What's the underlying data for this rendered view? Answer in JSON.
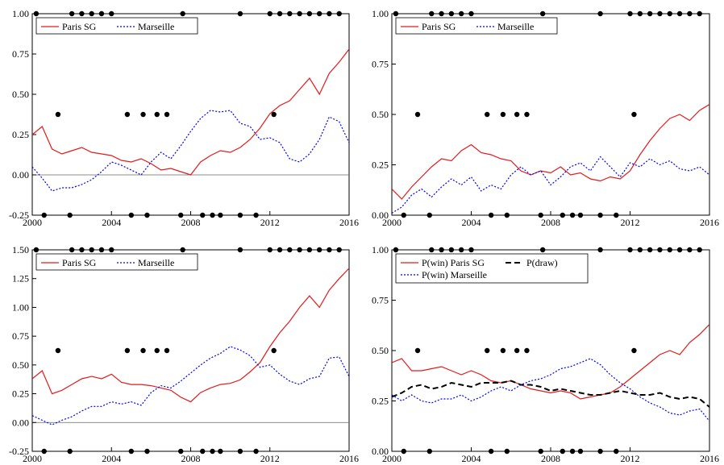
{
  "chart_data": [
    {
      "type": "line",
      "title": "",
      "xlabel": "",
      "ylabel": "",
      "xlim": [
        2000,
        2016
      ],
      "ylim": [
        -0.25,
        1.0
      ],
      "x_ticks": [
        "2000",
        "2004",
        "2008",
        "2012",
        "2016"
      ],
      "y_ticks": [
        "-0.25",
        "0.00",
        "0.25",
        "0.50",
        "0.75",
        "1.00"
      ],
      "reference_line": 0,
      "legend_position": "top-left",
      "series": [
        {
          "name": "Paris SG",
          "color": "#e41a1c",
          "style": "solid",
          "x": [
            2000,
            2000.5,
            2001,
            2001.5,
            2002,
            2002.5,
            2003,
            2003.5,
            2004,
            2004.5,
            2005,
            2005.5,
            2006,
            2006.5,
            2007,
            2007.5,
            2008,
            2008.5,
            2009,
            2009.5,
            2010,
            2010.5,
            2011,
            2011.5,
            2012,
            2012.5,
            2013,
            2013.5,
            2014,
            2014.5,
            2015,
            2015.5,
            2016
          ],
          "y": [
            0.25,
            0.3,
            0.16,
            0.13,
            0.15,
            0.17,
            0.14,
            0.13,
            0.12,
            0.09,
            0.08,
            0.1,
            0.07,
            0.03,
            0.04,
            0.02,
            0.0,
            0.08,
            0.12,
            0.15,
            0.14,
            0.17,
            0.22,
            0.29,
            0.38,
            0.43,
            0.46,
            0.53,
            0.6,
            0.5,
            0.63,
            0.7,
            0.78
          ]
        },
        {
          "name": "Marseille",
          "color": "#0000ff",
          "style": "dotted",
          "x": [
            2000,
            2000.5,
            2001,
            2001.5,
            2002,
            2002.5,
            2003,
            2003.5,
            2004,
            2004.5,
            2005,
            2005.5,
            2006,
            2006.5,
            2007,
            2007.5,
            2008,
            2008.5,
            2009,
            2009.5,
            2010,
            2010.5,
            2011,
            2011.5,
            2012,
            2012.5,
            2013,
            2013.5,
            2014,
            2014.5,
            2015,
            2015.5,
            2016
          ],
          "y": [
            0.05,
            -0.02,
            -0.1,
            -0.08,
            -0.08,
            -0.06,
            -0.03,
            0.02,
            0.08,
            0.06,
            0.03,
            0.0,
            0.08,
            0.14,
            0.1,
            0.18,
            0.27,
            0.35,
            0.4,
            0.39,
            0.4,
            0.32,
            0.3,
            0.22,
            0.23,
            0.2,
            0.1,
            0.08,
            0.13,
            0.22,
            0.36,
            0.33,
            0.2
          ]
        }
      ],
      "result_dots": {
        "top": [
          2000.2,
          2002,
          2002.5,
          2003,
          2003.5,
          2004,
          2007.6,
          2010.5,
          2012,
          2012.5,
          2013,
          2013.5,
          2014,
          2014.5,
          2015,
          2015.5
        ],
        "middle": [
          2001.3,
          2004.8,
          2005.6,
          2006.3,
          2006.8,
          2012.2
        ],
        "bottom": [
          2000.6,
          2001.9,
          2005,
          2005.8,
          2007.5,
          2008.6,
          2009.1,
          2009.5,
          2010.5,
          2011.3
        ]
      }
    },
    {
      "type": "line",
      "title": "",
      "xlabel": "",
      "ylabel": "",
      "xlim": [
        2000,
        2016
      ],
      "ylim": [
        0.0,
        1.0
      ],
      "x_ticks": [
        "2000",
        "2004",
        "2008",
        "2012",
        "2016"
      ],
      "y_ticks": [
        "0.00",
        "0.25",
        "0.50",
        "0.75",
        "1.00"
      ],
      "legend_position": "top-left",
      "series": [
        {
          "name": "Paris SG",
          "color": "#e41a1c",
          "style": "solid",
          "x": [
            2000,
            2000.5,
            2001,
            2001.5,
            2002,
            2002.5,
            2003,
            2003.5,
            2004,
            2004.5,
            2005,
            2005.5,
            2006,
            2006.5,
            2007,
            2007.5,
            2008,
            2008.5,
            2009,
            2009.5,
            2010,
            2010.5,
            2011,
            2011.5,
            2012,
            2012.5,
            2013,
            2013.5,
            2014,
            2014.5,
            2015,
            2015.5,
            2016
          ],
          "y": [
            0.13,
            0.08,
            0.14,
            0.19,
            0.24,
            0.28,
            0.27,
            0.32,
            0.35,
            0.31,
            0.3,
            0.28,
            0.27,
            0.22,
            0.2,
            0.22,
            0.21,
            0.24,
            0.2,
            0.21,
            0.18,
            0.17,
            0.19,
            0.18,
            0.22,
            0.3,
            0.37,
            0.43,
            0.48,
            0.5,
            0.47,
            0.52,
            0.55
          ]
        },
        {
          "name": "Marseille",
          "color": "#0000ff",
          "style": "dotted",
          "x": [
            2000,
            2000.5,
            2001,
            2001.5,
            2002,
            2002.5,
            2003,
            2003.5,
            2004,
            2004.5,
            2005,
            2005.5,
            2006,
            2006.5,
            2007,
            2007.5,
            2008,
            2008.5,
            2009,
            2009.5,
            2010,
            2010.5,
            2011,
            2011.5,
            2012,
            2012.5,
            2013,
            2013.5,
            2014,
            2014.5,
            2015,
            2015.5,
            2016
          ],
          "y": [
            0.01,
            0.04,
            0.1,
            0.13,
            0.09,
            0.14,
            0.18,
            0.15,
            0.19,
            0.12,
            0.15,
            0.13,
            0.2,
            0.24,
            0.2,
            0.22,
            0.15,
            0.19,
            0.24,
            0.26,
            0.22,
            0.29,
            0.24,
            0.19,
            0.26,
            0.24,
            0.28,
            0.25,
            0.27,
            0.23,
            0.22,
            0.24,
            0.2
          ]
        }
      ],
      "result_dots": {
        "top": [
          2000.2,
          2002,
          2002.5,
          2003,
          2003.5,
          2004,
          2007.6,
          2010.5,
          2012,
          2012.5,
          2013,
          2013.5,
          2014,
          2014.5,
          2015,
          2015.5
        ],
        "middle": [
          2001.3,
          2004.8,
          2005.6,
          2006.3,
          2006.8,
          2012.2
        ],
        "bottom": [
          2000.6,
          2001.9,
          2005,
          2005.8,
          2007.5,
          2008.6,
          2009.1,
          2009.5,
          2010.5,
          2011.3
        ]
      }
    },
    {
      "type": "line",
      "title": "",
      "xlabel": "",
      "ylabel": "",
      "xlim": [
        2000,
        2016
      ],
      "ylim": [
        -0.25,
        1.5
      ],
      "x_ticks": [
        "2000",
        "2004",
        "2008",
        "2012",
        "2016"
      ],
      "y_ticks": [
        "-0.25",
        "0.00",
        "0.25",
        "0.50",
        "0.75",
        "1.00",
        "1.25",
        "1.50"
      ],
      "reference_line": 0,
      "legend_position": "top-left",
      "series": [
        {
          "name": "Paris SG",
          "color": "#e41a1c",
          "style": "solid",
          "x": [
            2000,
            2000.5,
            2001,
            2001.5,
            2002,
            2002.5,
            2003,
            2003.5,
            2004,
            2004.5,
            2005,
            2005.5,
            2006,
            2006.5,
            2007,
            2007.5,
            2008,
            2008.5,
            2009,
            2009.5,
            2010,
            2010.5,
            2011,
            2011.5,
            2012,
            2012.5,
            2013,
            2013.5,
            2014,
            2014.5,
            2015,
            2015.5,
            2016
          ],
          "y": [
            0.38,
            0.45,
            0.25,
            0.28,
            0.33,
            0.38,
            0.4,
            0.38,
            0.42,
            0.35,
            0.33,
            0.33,
            0.32,
            0.3,
            0.28,
            0.22,
            0.18,
            0.26,
            0.3,
            0.33,
            0.34,
            0.37,
            0.44,
            0.52,
            0.66,
            0.78,
            0.88,
            1.0,
            1.1,
            1.0,
            1.15,
            1.25,
            1.34
          ]
        },
        {
          "name": "Marseille",
          "color": "#0000ff",
          "style": "dotted",
          "x": [
            2000,
            2000.5,
            2001,
            2001.5,
            2002,
            2002.5,
            2003,
            2003.5,
            2004,
            2004.5,
            2005,
            2005.5,
            2006,
            2006.5,
            2007,
            2007.5,
            2008,
            2008.5,
            2009,
            2009.5,
            2010,
            2010.5,
            2011,
            2011.5,
            2012,
            2012.5,
            2013,
            2013.5,
            2014,
            2014.5,
            2015,
            2015.5,
            2016
          ],
          "y": [
            0.06,
            0.02,
            -0.02,
            0.02,
            0.05,
            0.1,
            0.14,
            0.14,
            0.18,
            0.16,
            0.18,
            0.15,
            0.26,
            0.32,
            0.3,
            0.36,
            0.43,
            0.5,
            0.56,
            0.6,
            0.66,
            0.63,
            0.58,
            0.48,
            0.5,
            0.42,
            0.36,
            0.33,
            0.38,
            0.4,
            0.56,
            0.57,
            0.4
          ]
        }
      ],
      "result_dots": {
        "top": [
          2000.2,
          2002,
          2002.5,
          2003,
          2003.5,
          2004,
          2007.6,
          2010.5,
          2012,
          2012.5,
          2013,
          2013.5,
          2014,
          2014.5,
          2015,
          2015.5
        ],
        "middle": [
          2001.3,
          2004.8,
          2005.6,
          2006.3,
          2006.8,
          2012.2
        ],
        "bottom": [
          2000.6,
          2001.9,
          2005,
          2005.8,
          2007.5,
          2008.6,
          2009.1,
          2009.5,
          2010.5,
          2011.3
        ]
      }
    },
    {
      "type": "line",
      "title": "",
      "xlabel": "",
      "ylabel": "",
      "xlim": [
        2000,
        2016
      ],
      "ylim": [
        0.0,
        1.0
      ],
      "x_ticks": [
        "2000",
        "2004",
        "2008",
        "2012",
        "2016"
      ],
      "y_ticks": [
        "0.00",
        "0.25",
        "0.50",
        "0.75",
        "1.00"
      ],
      "legend_position": "top-left",
      "series": [
        {
          "name": "P(win) Paris SG",
          "color": "#e41a1c",
          "style": "solid",
          "x": [
            2000,
            2000.5,
            2001,
            2001.5,
            2002,
            2002.5,
            2003,
            2003.5,
            2004,
            2004.5,
            2005,
            2005.5,
            2006,
            2006.5,
            2007,
            2007.5,
            2008,
            2008.5,
            2009,
            2009.5,
            2010,
            2010.5,
            2011,
            2011.5,
            2012,
            2012.5,
            2013,
            2013.5,
            2014,
            2014.5,
            2015,
            2015.5,
            2016
          ],
          "y": [
            0.44,
            0.46,
            0.4,
            0.4,
            0.41,
            0.42,
            0.4,
            0.38,
            0.4,
            0.38,
            0.35,
            0.34,
            0.35,
            0.33,
            0.31,
            0.3,
            0.29,
            0.3,
            0.29,
            0.26,
            0.27,
            0.28,
            0.29,
            0.32,
            0.36,
            0.4,
            0.44,
            0.48,
            0.5,
            0.48,
            0.54,
            0.58,
            0.63
          ]
        },
        {
          "name": "P(draw)",
          "color": "#000000",
          "style": "dashed",
          "x": [
            2000,
            2000.5,
            2001,
            2001.5,
            2002,
            2002.5,
            2003,
            2003.5,
            2004,
            2004.5,
            2005,
            2005.5,
            2006,
            2006.5,
            2007,
            2007.5,
            2008,
            2008.5,
            2009,
            2009.5,
            2010,
            2010.5,
            2011,
            2011.5,
            2012,
            2012.5,
            2013,
            2013.5,
            2014,
            2014.5,
            2015,
            2015.5,
            2016
          ],
          "y": [
            0.27,
            0.29,
            0.32,
            0.33,
            0.31,
            0.32,
            0.34,
            0.33,
            0.32,
            0.34,
            0.34,
            0.34,
            0.35,
            0.33,
            0.33,
            0.32,
            0.3,
            0.31,
            0.3,
            0.29,
            0.28,
            0.28,
            0.29,
            0.3,
            0.29,
            0.28,
            0.28,
            0.29,
            0.27,
            0.26,
            0.27,
            0.26,
            0.22
          ]
        },
        {
          "name": "P(win) Marseille",
          "color": "#0000ff",
          "style": "dotted",
          "x": [
            2000,
            2000.5,
            2001,
            2001.5,
            2002,
            2002.5,
            2003,
            2003.5,
            2004,
            2004.5,
            2005,
            2005.5,
            2006,
            2006.5,
            2007,
            2007.5,
            2008,
            2008.5,
            2009,
            2009.5,
            2010,
            2010.5,
            2011,
            2011.5,
            2012,
            2012.5,
            2013,
            2013.5,
            2014,
            2014.5,
            2015,
            2015.5,
            2016
          ],
          "y": [
            0.28,
            0.25,
            0.28,
            0.25,
            0.24,
            0.26,
            0.26,
            0.28,
            0.25,
            0.27,
            0.3,
            0.32,
            0.3,
            0.33,
            0.35,
            0.36,
            0.38,
            0.41,
            0.42,
            0.44,
            0.46,
            0.43,
            0.38,
            0.34,
            0.31,
            0.27,
            0.24,
            0.22,
            0.19,
            0.18,
            0.2,
            0.21,
            0.15
          ]
        }
      ],
      "result_dots": {
        "top": [
          2000.2,
          2002,
          2002.5,
          2003,
          2003.5,
          2004,
          2007.6,
          2010.5,
          2012,
          2012.5,
          2013,
          2013.5,
          2014,
          2014.5,
          2015,
          2015.5
        ],
        "middle": [
          2001.3,
          2004.8,
          2005.6,
          2006.3,
          2006.8,
          2012.2
        ],
        "bottom": [
          2000.6,
          2001.9,
          2005,
          2005.8,
          2007.5,
          2008.6,
          2009.1,
          2009.5,
          2010.5,
          2011.3
        ]
      }
    }
  ]
}
